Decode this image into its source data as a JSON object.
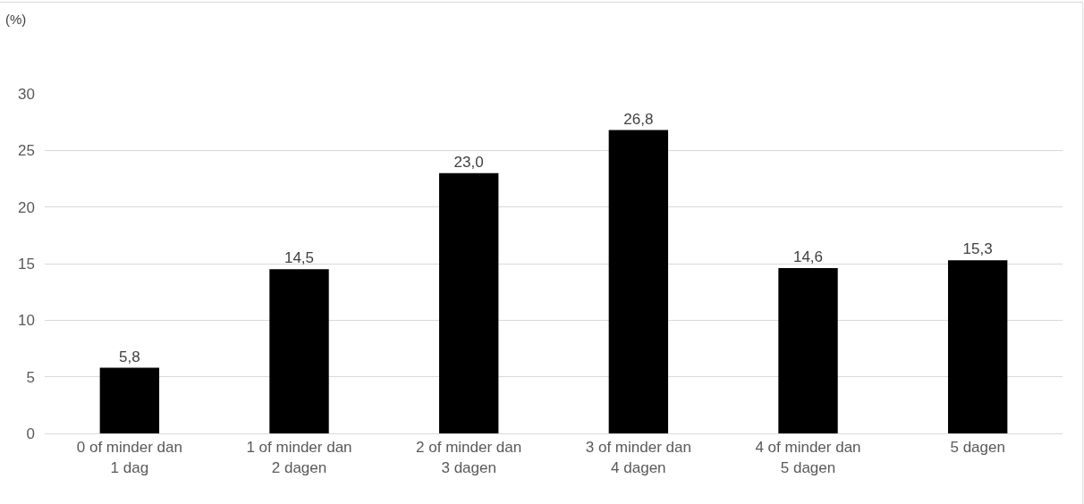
{
  "chart_data": {
    "type": "bar",
    "ylabel": "(%)",
    "categories": [
      "0 of minder dan 1 dag",
      "1 of minder dan 2 dagen",
      "2 of minder dan 3 dagen",
      "3 of minder dan 4 dagen",
      "4 of minder dan 5 dagen",
      "5 dagen"
    ],
    "values": [
      5.8,
      14.5,
      23.0,
      26.8,
      14.6,
      15.3
    ],
    "value_labels": [
      "5,8",
      "14,5",
      "23,0",
      "26,8",
      "14,6",
      "15,3"
    ],
    "color": "#000000",
    "ylim": [
      0,
      30
    ],
    "yticks": [
      0,
      5,
      10,
      15,
      20,
      25,
      30
    ],
    "grid": "y"
  }
}
